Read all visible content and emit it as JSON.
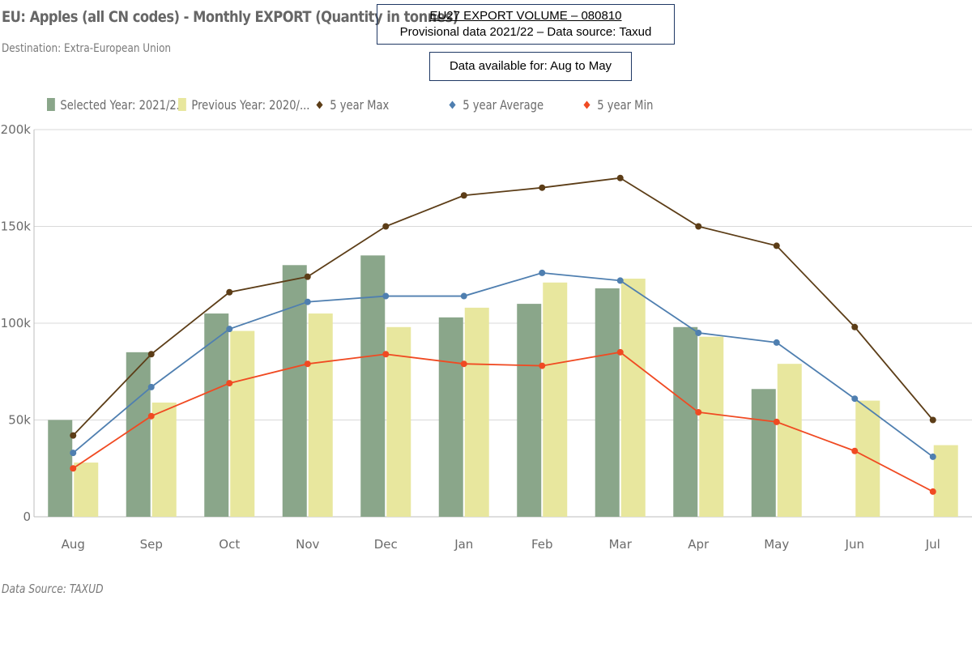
{
  "header": {
    "title": "EU: Apples (all CN codes) - Monthly EXPORT (Quantity in tonnes)",
    "subtitle": "Destination: Extra-European Union"
  },
  "info_box": {
    "line1": "EU27 EXPORT VOLUME   – 080810",
    "line2": "Provisional data 2021/22 – Data source: Taxud"
  },
  "availability_box": {
    "text": "Data available for: Aug to May"
  },
  "footer": {
    "source": "Data Source: TAXUD"
  },
  "colors": {
    "selected": "#8aa68a",
    "previous": "#e8e79e",
    "max": "#5c3d17",
    "avg": "#4f7fb0",
    "min": "#f04a22",
    "grid": "#d9d9d9"
  },
  "chart_data": {
    "type": "bar",
    "categories": [
      "Aug",
      "Sep",
      "Oct",
      "Nov",
      "Dec",
      "Jan",
      "Feb",
      "Mar",
      "Apr",
      "May",
      "Jun",
      "Jul"
    ],
    "ylim": [
      0,
      200000
    ],
    "yticks": [
      0,
      50000,
      100000,
      150000,
      200000
    ],
    "ytick_labels": [
      "0",
      "50k",
      "100k",
      "150k",
      "200k"
    ],
    "legend_position": "top-left",
    "grid": true,
    "series": [
      {
        "name": "Selected Year: 2021/2...",
        "kind": "bar",
        "values": [
          50000,
          85000,
          105000,
          130000,
          135000,
          103000,
          110000,
          118000,
          98000,
          66000,
          null,
          null
        ]
      },
      {
        "name": "Previous Year: 2020/...",
        "kind": "bar",
        "values": [
          28000,
          59000,
          96000,
          105000,
          98000,
          108000,
          121000,
          123000,
          93000,
          79000,
          60000,
          37000
        ]
      },
      {
        "name": "5 year Max",
        "kind": "line",
        "values": [
          42000,
          84000,
          116000,
          124000,
          150000,
          166000,
          170000,
          175000,
          150000,
          140000,
          98000,
          50000
        ]
      },
      {
        "name": "5 year Average",
        "kind": "line",
        "values": [
          33000,
          67000,
          97000,
          111000,
          114000,
          114000,
          126000,
          122000,
          95000,
          90000,
          61000,
          31000
        ]
      },
      {
        "name": "5 year Min",
        "kind": "line",
        "values": [
          25000,
          52000,
          69000,
          79000,
          84000,
          79000,
          78000,
          85000,
          54000,
          49000,
          34000,
          13000
        ]
      }
    ]
  }
}
